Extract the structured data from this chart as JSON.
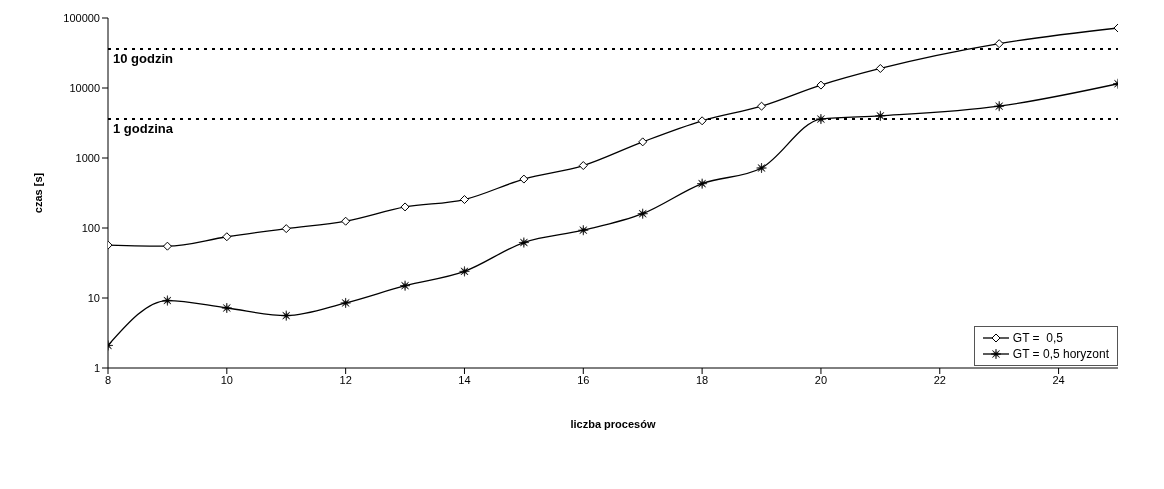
{
  "chart_data": {
    "type": "line",
    "xlabel": "liczba procesów",
    "ylabel": "czas [s]",
    "log": true,
    "xlim": [
      8,
      25
    ],
    "xticks": [
      8,
      10,
      12,
      14,
      16,
      18,
      20,
      22,
      24
    ],
    "ylim": [
      1,
      100000
    ],
    "yticks": [
      1,
      10,
      100,
      1000,
      10000,
      100000
    ],
    "grid": false,
    "legend": "bottom right",
    "line_style": "solid",
    "x": [
      8,
      9,
      10,
      11,
      12,
      13,
      14,
      15,
      16,
      17,
      18,
      19,
      20,
      21,
      23,
      25
    ],
    "series": [
      {
        "name": "GT =  0,5",
        "color": "#000000",
        "marker": "diamond",
        "values": [
          57,
          55,
          75,
          98,
          125,
          200,
          255,
          500,
          780,
          1700,
          3400,
          5500,
          11000,
          19000,
          43000,
          72000
        ]
      },
      {
        "name": "GT = 0,5 horyzont",
        "color": "#000000",
        "marker": "star",
        "values": [
          2.1,
          9.2,
          7.2,
          5.6,
          8.5,
          15,
          24,
          62,
          93,
          160,
          430,
          720,
          3600,
          4000,
          5500,
          11500
        ]
      }
    ],
    "ref_lines": [
      {
        "axis": "y",
        "value": 36000,
        "label": "10 godzin",
        "line_style": "dotted"
      },
      {
        "axis": "y",
        "value": 3600,
        "label": "1 godzina",
        "line_style": "dotted"
      }
    ]
  }
}
